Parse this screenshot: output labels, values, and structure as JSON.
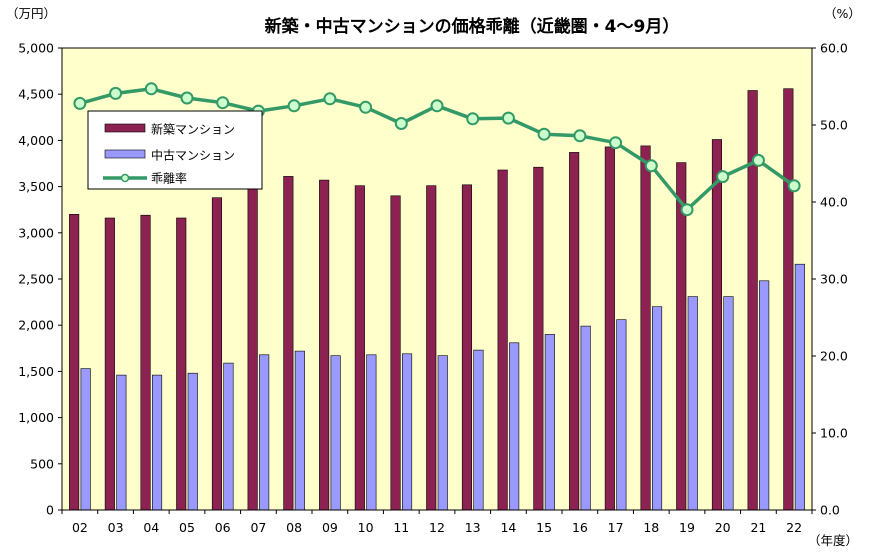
{
  "chart_data": {
    "type": "bar",
    "title": "新築・中古マンションの価格乖離（近畿圏・4〜9月）",
    "left_unit": "（万円）",
    "right_unit": "（%）",
    "x_unit": "（年度）",
    "categories": [
      "02",
      "03",
      "04",
      "05",
      "06",
      "07",
      "08",
      "09",
      "10",
      "11",
      "12",
      "13",
      "14",
      "15",
      "16",
      "17",
      "18",
      "19",
      "20",
      "21",
      "22"
    ],
    "ylim_left": [
      0,
      5000
    ],
    "ylim_right": [
      0,
      60
    ],
    "left_ticks": [
      "0",
      "500",
      "1,000",
      "1,500",
      "2,000",
      "2,500",
      "3,000",
      "3,500",
      "4,000",
      "4,500",
      "5,000"
    ],
    "right_ticks": [
      "0.0",
      "10.0",
      "20.0",
      "30.0",
      "40.0",
      "50.0",
      "60.0"
    ],
    "grid": false,
    "legend_position": "upper-left",
    "colors": {
      "plot_bg": "#ffffcc",
      "new": "#8b2252",
      "used": "#9999ff",
      "line": "#339966",
      "marker_fill": "#ccffcc"
    },
    "series": [
      {
        "name": "新築マンション",
        "type": "bar",
        "axis": "left",
        "values": [
          3200,
          3160,
          3190,
          3160,
          3380,
          3590,
          3610,
          3570,
          3510,
          3400,
          3510,
          3520,
          3680,
          3710,
          3870,
          3930,
          3940,
          3760,
          4010,
          4540,
          4560
        ]
      },
      {
        "name": "中古マンション",
        "type": "bar",
        "axis": "left",
        "values": [
          1530,
          1460,
          1460,
          1480,
          1590,
          1680,
          1720,
          1670,
          1680,
          1690,
          1670,
          1730,
          1810,
          1900,
          1990,
          2060,
          2200,
          2310,
          2310,
          2480,
          2660
        ]
      },
      {
        "name": "乖離率",
        "type": "line",
        "axis": "right",
        "values": [
          52.8,
          54.1,
          54.7,
          53.5,
          52.9,
          51.8,
          52.5,
          53.4,
          52.3,
          50.2,
          52.5,
          50.8,
          50.9,
          48.8,
          48.6,
          47.7,
          44.7,
          39.0,
          43.3,
          45.4,
          42.1
        ]
      }
    ]
  }
}
